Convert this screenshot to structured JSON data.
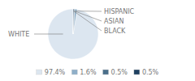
{
  "chart_data": {
    "type": "pie",
    "categories": [
      "WHITE",
      "HISPANIC",
      "ASIAN",
      "BLACK"
    ],
    "values": [
      97.4,
      1.6,
      0.5,
      0.5
    ],
    "value_labels": [
      "97.4%",
      "1.6%",
      "0.5%",
      "0.5%"
    ],
    "colors": [
      "#dce6f0",
      "#8fafc8",
      "#4a6f8a",
      "#1f4060"
    ],
    "legend": "bottom"
  }
}
